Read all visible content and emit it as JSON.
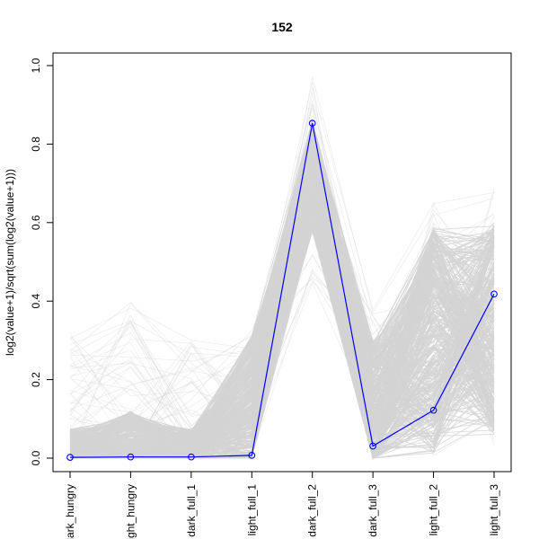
{
  "chart_data": {
    "type": "line",
    "title": "152",
    "xlabel": "",
    "ylabel": "log2(value+1)/sqrt(sum(log2(value+1)))",
    "ylim": [
      0.0,
      1.0
    ],
    "yticks": [
      "0.0",
      "0.2",
      "0.4",
      "0.6",
      "0.8",
      "1.0"
    ],
    "categories": [
      "dark_hungry",
      "light_hungry",
      "dark_full_1",
      "light_full_1",
      "dark_full_2",
      "dark_full_3",
      "light_full_2",
      "light_full_3"
    ],
    "grid": false,
    "legend": "none",
    "highlight_series": {
      "color": "#0000ff",
      "values": [
        0.002,
        0.003,
        0.003,
        0.007,
        0.853,
        0.031,
        0.122,
        0.418
      ]
    },
    "background_series": {
      "color": "#d3d3d3",
      "description_min": [
        0.0,
        0.0,
        0.0,
        0.0,
        0.42,
        0.0,
        0.0,
        0.03
      ],
      "description_max": [
        0.33,
        0.4,
        0.31,
        0.33,
        0.995,
        0.42,
        0.65,
        0.69
      ]
    }
  }
}
